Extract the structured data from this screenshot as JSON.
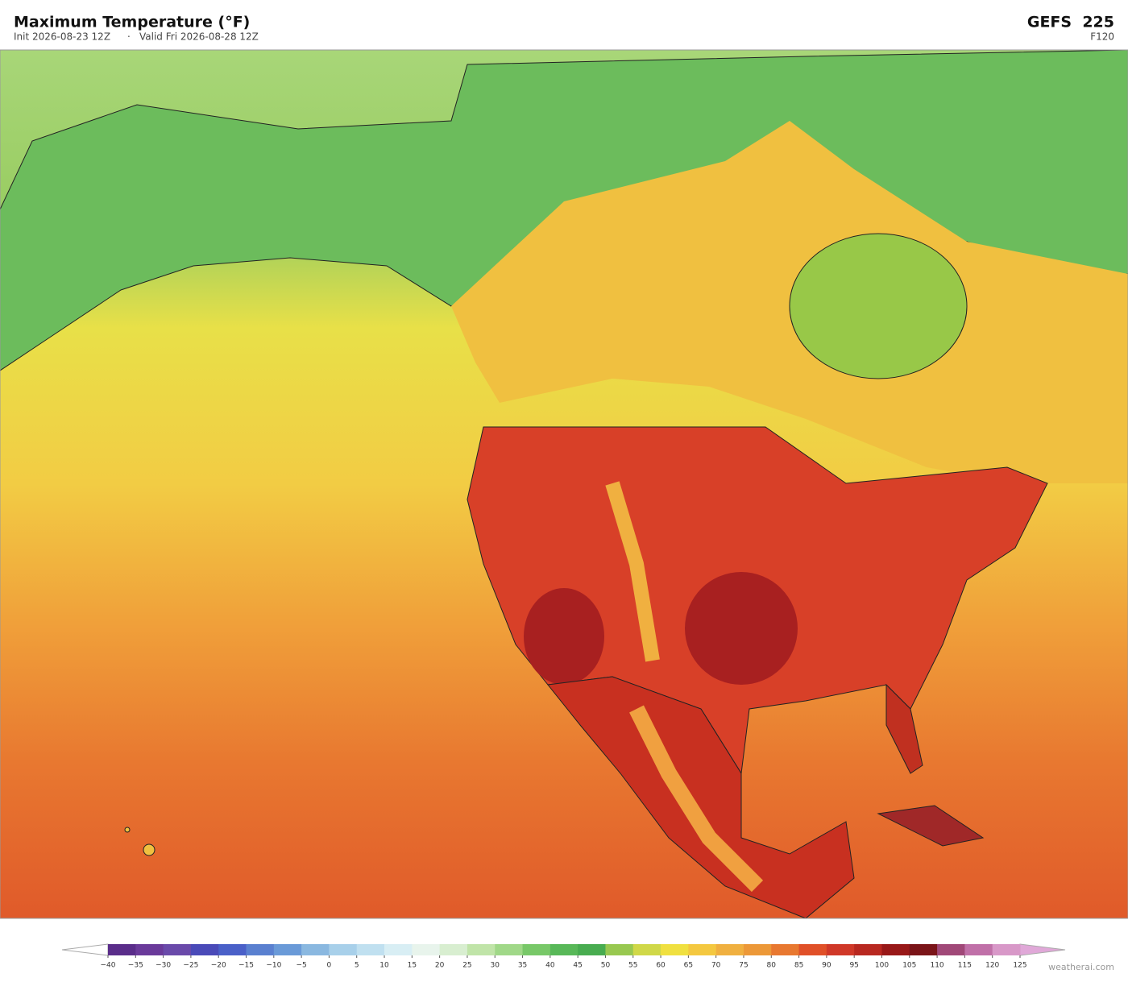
{
  "header": {
    "title": "Maximum Temperature  (°F)",
    "init": "Init 2026-08-23 12Z",
    "separator": "·",
    "valid": "Valid Fri 2026-08-28 12Z",
    "model": "GEFS  225",
    "forecast_hour": "F120"
  },
  "colorbar": {
    "ticks": [
      {
        "value": -40,
        "label": "−40"
      },
      {
        "value": -35,
        "label": "−35"
      },
      {
        "value": -30,
        "label": "−30"
      },
      {
        "value": -25,
        "label": "−25"
      },
      {
        "value": -20,
        "label": "−20"
      },
      {
        "value": -15,
        "label": "−15"
      },
      {
        "value": -10,
        "label": "−10"
      },
      {
        "value": -5,
        "label": "−5"
      },
      0,
      5,
      10,
      15,
      20,
      25,
      30,
      35,
      40,
      45,
      50,
      55,
      60,
      65,
      70,
      75,
      80,
      85,
      90,
      95,
      100,
      105,
      110,
      115,
      120,
      125
    ],
    "colors": [
      "#5a2d8a",
      "#6a3a9a",
      "#6a4aaa",
      "#4a4ab8",
      "#4a60c8",
      "#5a80d0",
      "#6a9ad8",
      "#8ab8e0",
      "#a8d0ea",
      "#c0e0f0",
      "#d8eef4",
      "#e8f4ec",
      "#d8eed0",
      "#c0e4a8",
      "#a0d888",
      "#78c868",
      "#58b858",
      "#48ac50",
      "#98c850",
      "#d0d848",
      "#f0e040",
      "#f4c840",
      "#f0b040",
      "#ec9838",
      "#e87830",
      "#e05028",
      "#d03828",
      "#b82820",
      "#981818",
      "#7a1418",
      "#a04878",
      "#c070a8",
      "#d898c8"
    ],
    "under_color": "#ffffff",
    "over_color": "#e0a8d8"
  },
  "watermark": "weatherai.com"
}
